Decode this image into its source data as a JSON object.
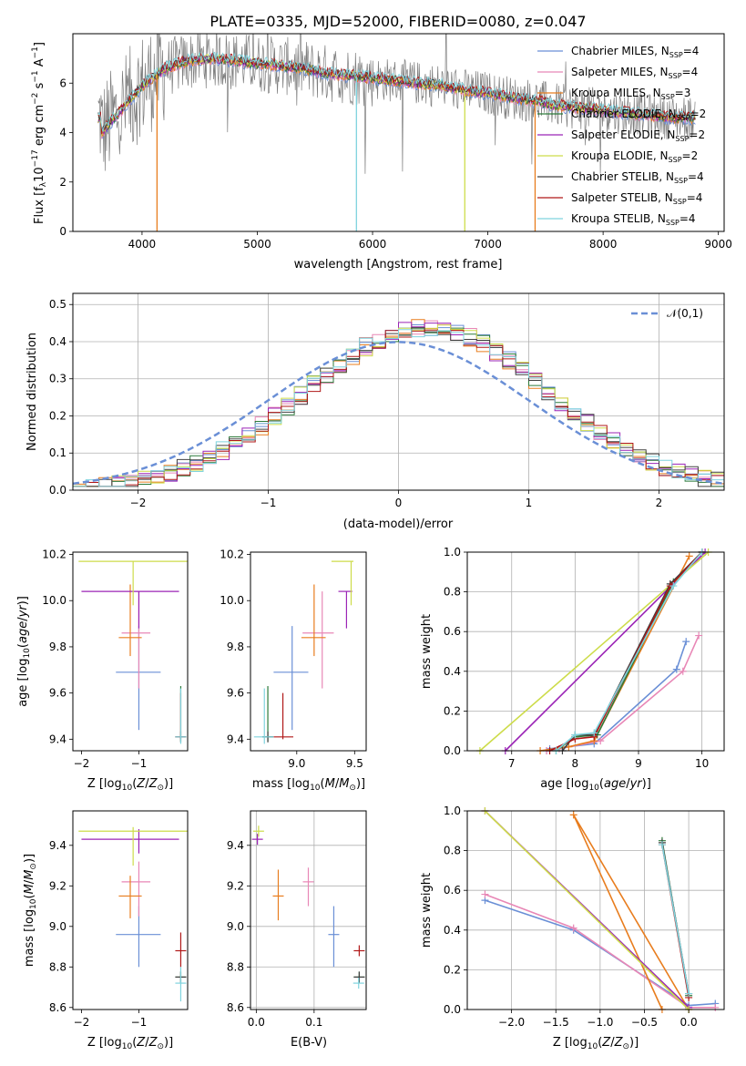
{
  "figure": {
    "title": "PLATE=0335, MJD=52000, FIBERID=0080, z=0.047",
    "colors": [
      "#6a8fd6",
      "#e887b6",
      "#e87d1e",
      "#2c7a3a",
      "#9b24b6",
      "#cddc4a",
      "#404040",
      "#b01818",
      "#7fd3de"
    ]
  },
  "chart_data": [
    {
      "type": "line",
      "name": "spectrum",
      "xlabel": "wavelength [Angstrom, rest frame]",
      "ylabel": "Flux [f_λ 10^-17 erg cm^-2 s^-1 A^-1]",
      "xlim": [
        3400,
        9050
      ],
      "ylim": [
        0,
        8
      ],
      "xticks": [
        4000,
        5000,
        6000,
        7000,
        8000,
        9000
      ],
      "yticks": [
        0,
        2,
        4,
        6
      ],
      "grid": false,
      "legend_position": "top-right",
      "legend": [
        {
          "label": "Chabrier MILES, N_SSP=4"
        },
        {
          "label": "Salpeter MILES, N_SSP=4"
        },
        {
          "label": "Kroupa MILES, N_SSP=3"
        },
        {
          "label": "Chabrier ELODIE, N_SSP=2"
        },
        {
          "label": "Salpeter ELODIE, N_SSP=2"
        },
        {
          "label": "Kroupa ELODIE, N_SSP=2"
        },
        {
          "label": "Chabrier STELIB, N_SSP=4"
        },
        {
          "label": "Salpeter STELIB, N_SSP=4"
        },
        {
          "label": "Kroupa STELIB, N_SSP=4"
        }
      ],
      "data_trend": {
        "x": [
          3650,
          3800,
          4000,
          4200,
          4400,
          4600,
          4800,
          5000,
          5200,
          5400,
          5600,
          5800,
          6000,
          6200,
          6400,
          6600,
          6800,
          7000,
          7200,
          7400,
          7600,
          7800,
          8000,
          8200,
          8400,
          8600,
          8800
        ],
        "y": [
          4.0,
          4.8,
          5.9,
          6.6,
          6.9,
          7.0,
          6.9,
          6.8,
          6.7,
          6.6,
          6.4,
          6.3,
          6.2,
          6.1,
          6.0,
          5.9,
          5.7,
          5.6,
          5.4,
          5.3,
          5.1,
          5.0,
          4.9,
          4.8,
          4.7,
          4.6,
          4.6
        ]
      }
    },
    {
      "type": "line",
      "name": "residuals",
      "xlabel": "(data-model)/error",
      "ylabel": "Normed distribution",
      "xlim": [
        -2.5,
        2.5
      ],
      "ylim": [
        0,
        0.53
      ],
      "xticks": [
        -2,
        -1,
        0,
        1,
        2
      ],
      "yticks": [
        0.0,
        0.1,
        0.2,
        0.3,
        0.4,
        0.5
      ],
      "grid": true,
      "legend_position": "top-right",
      "legend": [
        {
          "label": "𝒩(0,1)"
        }
      ],
      "normal": {
        "mean": 0,
        "sigma": 1
      }
    },
    {
      "type": "scatter",
      "name": "age-vs-Z",
      "xlabel": "Z [log10(Z/Z⊙)]",
      "ylabel": "age  [log10(age/yr)]",
      "xlim": [
        -2.15,
        -0.15
      ],
      "ylim": [
        9.35,
        10.21
      ],
      "xticks": [
        -2,
        -1
      ],
      "yticks": [
        9.4,
        9.6,
        9.8,
        10.0,
        10.2
      ],
      "grid": false
    },
    {
      "type": "scatter",
      "name": "age-vs-mass",
      "xlabel": "mass [log10(M/M⊙)]",
      "ylabel": "",
      "xlim": [
        8.6,
        9.6
      ],
      "ylim": [
        9.35,
        10.21
      ],
      "xticks": [
        9.0,
        9.5
      ],
      "yticks": [
        9.4,
        9.6,
        9.8,
        10.0,
        10.2
      ],
      "grid": false
    },
    {
      "type": "line",
      "name": "mass-weight-vs-age",
      "xlabel": "age  [log10(age/yr)]",
      "ylabel": "mass weight",
      "xlim": [
        6.3,
        10.35
      ],
      "ylim": [
        0,
        1
      ],
      "xticks": [
        7,
        8,
        9,
        10
      ],
      "yticks": [
        0.0,
        0.2,
        0.4,
        0.6,
        0.8,
        1.0
      ],
      "grid": true
    },
    {
      "type": "scatter",
      "name": "mass-vs-Z",
      "xlabel": "Z [log10(Z/Z⊙)]",
      "ylabel": "mass [log10(M/M⊙)]",
      "xlim": [
        -2.15,
        -0.15
      ],
      "ylim": [
        8.59,
        9.57
      ],
      "xticks": [
        -2,
        -1
      ],
      "yticks": [
        8.6,
        8.8,
        9.0,
        9.2,
        9.4
      ],
      "grid": false
    },
    {
      "type": "scatter",
      "name": "mass-vs-EBV",
      "xlabel": "E(B-V)",
      "ylabel": "",
      "xlim": [
        -0.01,
        0.19
      ],
      "ylim": [
        8.59,
        9.57
      ],
      "xticks": [
        0.0,
        0.1
      ],
      "yticks": [
        8.6,
        8.8,
        9.0,
        9.2,
        9.4
      ],
      "grid": true
    },
    {
      "type": "line",
      "name": "mass-weight-vs-Z",
      "xlabel": "Z [log10(Z/Z⊙)]",
      "ylabel": "mass weight",
      "xlim": [
        -2.5,
        0.4
      ],
      "ylim": [
        0,
        1
      ],
      "xticks": [
        -2.0,
        -1.5,
        -1.0,
        -0.5,
        0.0
      ],
      "yticks": [
        0.0,
        0.2,
        0.4,
        0.6,
        0.8,
        1.0
      ],
      "grid": true
    }
  ],
  "models": [
    {
      "label": "Chabrier MILES",
      "color": "#6a8fd6",
      "Z": -1.0,
      "zerr": [
        -1.4,
        -0.62
      ],
      "age": 9.69,
      "age_err": [
        9.44,
        9.89
      ],
      "mass": 8.96,
      "mass_err": [
        8.8,
        9.1
      ],
      "ebv": 0.134,
      "ebv_err": [
        8.8,
        9.1
      ],
      "mw_age": [
        [
          7.55,
          0
        ],
        [
          7.6,
          0.01
        ],
        [
          8.3,
          0.035
        ],
        [
          9.6,
          0.41
        ],
        [
          9.75,
          0.55
        ]
      ],
      "mw_Z": [
        [
          0.3,
          0.03
        ],
        [
          0.0,
          0.02
        ],
        [
          -1.3,
          0.4
        ],
        [
          -2.3,
          0.55
        ]
      ]
    },
    {
      "label": "Salpeter MILES",
      "color": "#e887b6",
      "Z": -1.0,
      "zerr": [
        -1.3,
        -0.8
      ],
      "age": 9.86,
      "age_err": [
        9.62,
        10.04
      ],
      "mass": 9.22,
      "mass_err": [
        9.05,
        9.32
      ],
      "ebv": 0.09,
      "ebv_err": [
        9.1,
        9.29
      ],
      "mw_age": [
        [
          7.55,
          0
        ],
        [
          7.75,
          0.01
        ],
        [
          8.4,
          0.05
        ],
        [
          9.7,
          0.4
        ],
        [
          9.95,
          0.58
        ]
      ],
      "mw_Z": [
        [
          0.3,
          0.01
        ],
        [
          0.0,
          0.01
        ],
        [
          -1.3,
          0.41
        ],
        [
          -2.3,
          0.58
        ]
      ]
    },
    {
      "label": "Kroupa MILES",
      "color": "#e87d1e",
      "Z": -1.15,
      "zerr": [
        -1.35,
        -0.95
      ],
      "age": 9.84,
      "age_err": [
        9.76,
        10.07
      ],
      "mass": 9.15,
      "mass_err": [
        9.04,
        9.25
      ],
      "ebv": 0.038,
      "ebv_err": [
        9.03,
        9.28
      ],
      "mw_age": [
        [
          7.45,
          0
        ],
        [
          7.9,
          0.02
        ],
        [
          8.3,
          0.05
        ],
        [
          9.8,
          0.98
        ]
      ],
      "mw_Z": [
        [
          -0.3,
          0.0
        ],
        [
          -1.3,
          0.98
        ],
        [
          0.0,
          0.0
        ]
      ]
    },
    {
      "label": "Chabrier ELODIE",
      "color": "#2c7a3a",
      "Z": -0.27,
      "age": 9.41,
      "age_err": [
        9.39,
        9.63
      ],
      "mass": 8.75,
      "ebv": 0.178,
      "mw_age": [
        [
          7.7,
          0
        ],
        [
          8.0,
          0.07
        ],
        [
          8.35,
          0.08
        ],
        [
          9.55,
          0.85
        ],
        [
          10.0,
          1.0
        ]
      ],
      "mw_Z": [
        [
          0.0,
          0.07
        ],
        [
          -0.3,
          0.85
        ]
      ]
    },
    {
      "label": "Salpeter ELODIE",
      "color": "#9b24b6",
      "Z": -1.0,
      "zerr": [
        -2.0,
        -0.3
      ],
      "age": 10.04,
      "age_err": [
        9.88,
        10.04
      ],
      "mass": 9.43,
      "mass_err": [
        9.36,
        9.48
      ],
      "ebv": 0.002,
      "mw_age": [
        [
          6.9,
          0
        ],
        [
          10.05,
          1.0
        ]
      ],
      "mw_Z": [
        [
          0.0,
          0.01
        ],
        [
          -2.3,
          1.0
        ]
      ]
    },
    {
      "label": "Kroupa ELODIE",
      "color": "#cddc4a",
      "Z": -1.1,
      "zerr": [
        -2.05,
        -0.15
      ],
      "age": 10.17,
      "age_err": [
        9.98,
        10.17
      ],
      "mass": 9.47,
      "mass_err": [
        9.3,
        9.49
      ],
      "ebv": 0.004,
      "mw_age": [
        [
          6.5,
          0
        ],
        [
          10.1,
          1.0
        ]
      ],
      "mw_Z": [
        [
          0.0,
          0.0
        ],
        [
          -2.3,
          1.0
        ]
      ]
    },
    {
      "label": "Chabrier STELIB",
      "color": "#404040",
      "Z": -0.27,
      "age": 9.41,
      "mass": 8.75,
      "ebv": 0.178,
      "mw_age": [
        [
          7.8,
          0
        ],
        [
          8.0,
          0.08
        ],
        [
          8.3,
          0.08
        ],
        [
          9.5,
          0.84
        ],
        [
          10.0,
          1.0
        ]
      ],
      "mw_Z": [
        [
          0.0,
          0.08
        ],
        [
          -0.3,
          0.84
        ]
      ]
    },
    {
      "label": "Salpeter STELIB",
      "color": "#b01818",
      "Z": -0.27,
      "age": 9.41,
      "age_err": [
        9.4,
        9.6
      ],
      "mass": 8.88,
      "mass_err": [
        8.8,
        8.97
      ],
      "ebv": 0.178,
      "mw_age": [
        [
          7.6,
          0
        ],
        [
          8.0,
          0.06
        ],
        [
          8.3,
          0.07
        ],
        [
          9.5,
          0.83
        ],
        [
          10.0,
          1.0
        ]
      ],
      "mw_Z": [
        [
          0.0,
          0.06
        ],
        [
          -0.3,
          0.83
        ]
      ]
    },
    {
      "label": "Kroupa STELIB",
      "color": "#7fd3de",
      "Z": -0.27,
      "age": 9.41,
      "age_err": [
        9.38,
        9.62
      ],
      "mass": 8.72,
      "mass_err": [
        8.63,
        8.8
      ],
      "ebv": 0.177,
      "mw_age": [
        [
          7.7,
          0
        ],
        [
          8.0,
          0.08
        ],
        [
          8.3,
          0.09
        ],
        [
          9.55,
          0.83
        ],
        [
          10.0,
          1.0
        ]
      ],
      "mw_Z": [
        [
          0.0,
          0.08
        ],
        [
          -0.3,
          0.83
        ]
      ]
    }
  ]
}
